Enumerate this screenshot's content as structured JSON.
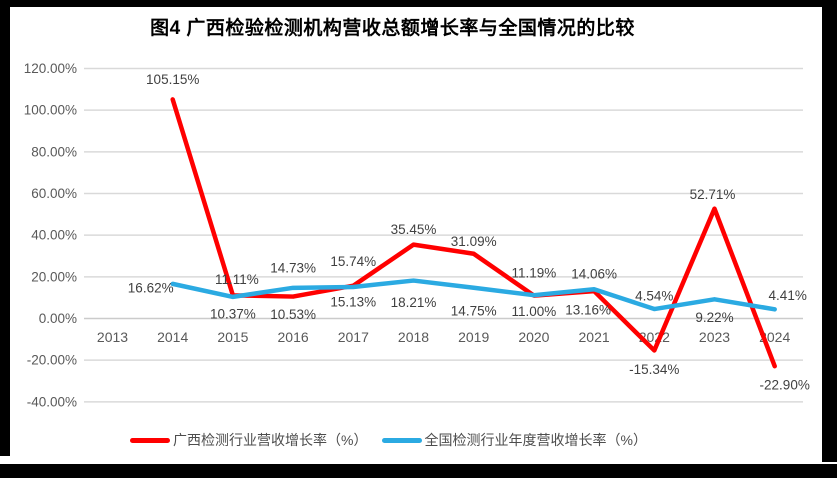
{
  "chart_data": {
    "type": "line",
    "title": "图4 广西检验检测机构营收总额增长率与全国情况的比较",
    "categories": [
      "2013",
      "2014",
      "2015",
      "2016",
      "2017",
      "2018",
      "2019",
      "2020",
      "2021",
      "2022",
      "2023",
      "2024"
    ],
    "y_axis": {
      "min": -40,
      "max": 120,
      "step": 20,
      "tick_labels": [
        "120.00%",
        "100.00%",
        "80.00%",
        "60.00%",
        "40.00%",
        "20.00%",
        "0.00%",
        "-20.00%",
        "-40.00%"
      ],
      "grid": true
    },
    "legend_position": "bottom",
    "colors": {
      "grid": "#D9D9D9",
      "axis_text": "#595959",
      "data_label": "#404040"
    },
    "series": [
      {
        "id": "guangxi",
        "name": "广西检测行业营收增长率（%）",
        "color": "#FF0000",
        "values": [
          null,
          105.15,
          11.11,
          10.53,
          15.74,
          35.45,
          31.09,
          11.0,
          13.16,
          -15.34,
          52.71,
          -22.9
        ],
        "labels": [
          null,
          "105.15%",
          "11.11%",
          "10.53%",
          "15.74%",
          "35.45%",
          "31.09%",
          "11.00%",
          "13.16%",
          "-15.34%",
          "52.71%",
          "-22.90%"
        ],
        "label_offsets": [
          null,
          [
            0,
            -20
          ],
          [
            4,
            -16
          ],
          [
            0,
            18
          ],
          [
            0,
            -24
          ],
          [
            0,
            -15
          ],
          [
            0,
            -12
          ],
          [
            0,
            16
          ],
          [
            -6,
            19
          ],
          [
            0,
            19
          ],
          [
            -2,
            -14
          ],
          [
            10,
            19
          ]
        ]
      },
      {
        "id": "national",
        "name": "全国检测行业年度营收增长率（%）",
        "color": "#2BAAE2",
        "values": [
          null,
          16.62,
          10.37,
          14.73,
          15.13,
          18.21,
          14.75,
          11.19,
          14.06,
          4.54,
          9.22,
          4.41
        ],
        "labels": [
          null,
          "16.62%",
          "10.37%",
          "14.73%",
          "15.13%",
          "18.21%",
          "14.75%",
          "11.19%",
          "14.06%",
          "4.54%",
          "9.22%",
          "4.41%"
        ],
        "label_offsets": [
          null,
          [
            -22,
            4
          ],
          [
            0,
            17
          ],
          [
            0,
            -20
          ],
          [
            0,
            15
          ],
          [
            0,
            22
          ],
          [
            0,
            23
          ],
          [
            0,
            -22
          ],
          [
            0,
            -15
          ],
          [
            0,
            -13
          ],
          [
            0,
            18
          ],
          [
            13,
            -14
          ]
        ]
      }
    ]
  }
}
